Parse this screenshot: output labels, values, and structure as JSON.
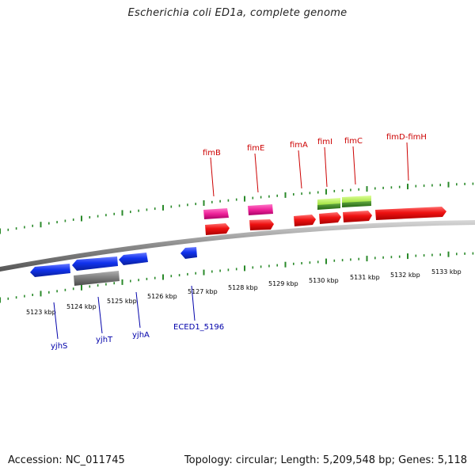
{
  "title": "Escherichia coli ED1a, complete genome",
  "footer": {
    "accession": "Accession: NC_011745",
    "summary": "Topology: circular; Length: 5,209,548 bp; Genes: 5,118"
  },
  "colors": {
    "backbone": "#8a8a8a",
    "tick": "#2a8a2a",
    "forward_gene": "#ee1111",
    "reverse_gene": "#1133ee",
    "pseudo_gene": "#7a7a7a",
    "fim_magenta": "#ee2299",
    "fim_green": "#99dd33",
    "upper_label": "#cc0000",
    "lower_label": "#0000aa"
  },
  "scale_labels": [
    "5123 kbp",
    "5124 kbp",
    "5125 kbp",
    "5126 kbp",
    "5127 kbp",
    "5128 kbp",
    "5129 kbp",
    "5130 kbp",
    "5131 kbp",
    "5132 kbp",
    "5133 kbp"
  ],
  "upper_gene_labels": [
    "fimB",
    "fimE",
    "fimA",
    "fimI",
    "fimC",
    "fimD-fimH"
  ],
  "lower_gene_labels": [
    "yjhS",
    "yjhT",
    "yjhA",
    "ECED1_5196"
  ]
}
